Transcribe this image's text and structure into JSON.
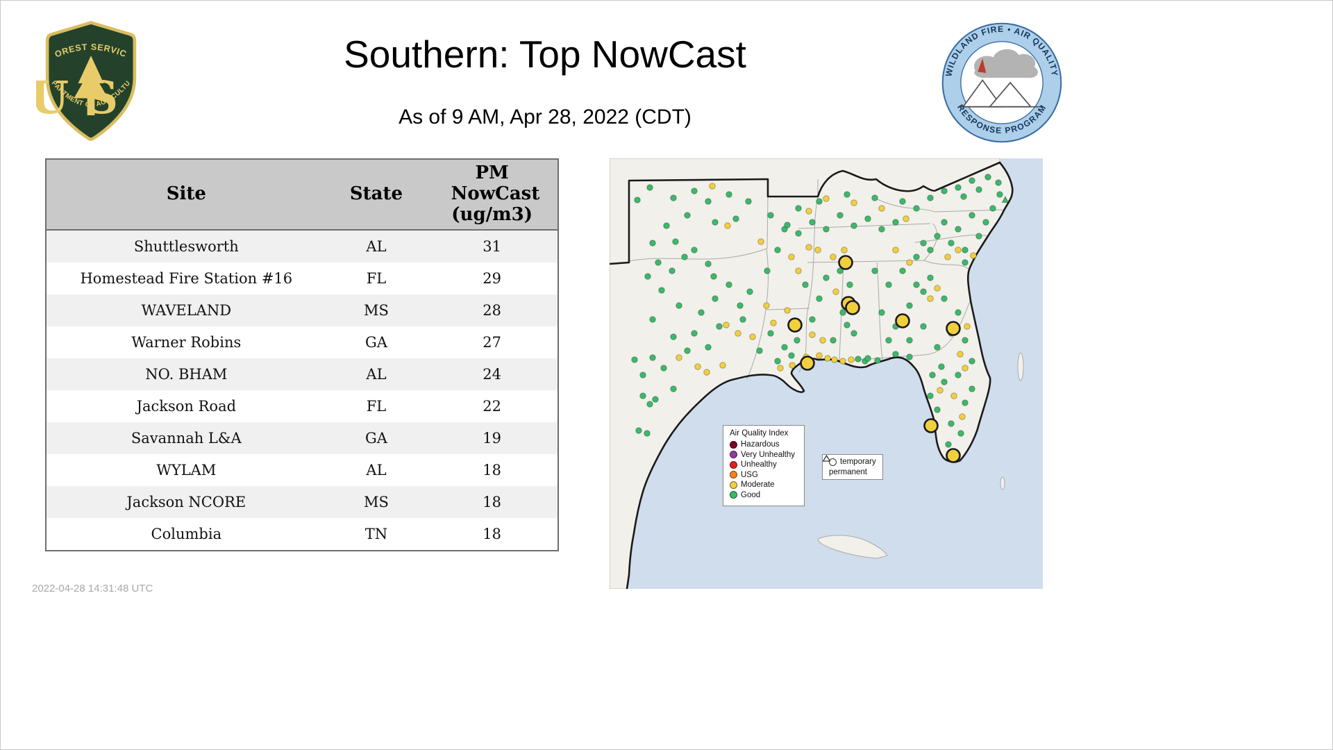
{
  "header": {
    "title": "Southern: Top NowCast",
    "subtitle": "As of  9 AM, Apr 28, 2022 (CDT)",
    "fs_logo": {
      "top": "FOREST SERVICE",
      "center": "US",
      "bottom": "DEPARTMENT OF AGRICULTURE"
    },
    "aqrp_logo": {
      "top": "WILDLAND FIRE • AIR QUALITY",
      "bottom": "RESPONSE PROGRAM"
    }
  },
  "table": {
    "columns": [
      "Site",
      "State",
      "PM NowCast (ug/m3)"
    ],
    "rows": [
      [
        "Shuttlesworth",
        "AL",
        "31"
      ],
      [
        "Homestead Fire Station #16",
        "FL",
        "29"
      ],
      [
        "WAVELAND",
        "MS",
        "28"
      ],
      [
        "Warner Robins",
        "GA",
        "27"
      ],
      [
        "NO. BHAM",
        "AL",
        "24"
      ],
      [
        "Jackson Road",
        "FL",
        "22"
      ],
      [
        "Savannah L&A",
        "GA",
        "19"
      ],
      [
        "WYLAM",
        "AL",
        "18"
      ],
      [
        "Jackson NCORE",
        "MS",
        "18"
      ],
      [
        "Columbia",
        "TN",
        "18"
      ]
    ]
  },
  "footer": {
    "timestamp": "2022-04-28 14:31:48 UTC"
  },
  "map": {
    "legend": {
      "title": "Air Quality Index",
      "items": [
        {
          "label": "Hazardous",
          "color": "#7e0023"
        },
        {
          "label": "Very Unhealthy",
          "color": "#8f3f97"
        },
        {
          "label": "Unhealthy",
          "color": "#e3211c"
        },
        {
          "label": "USG",
          "color": "#f58220"
        },
        {
          "label": "Moderate",
          "color": "#f2cf3e"
        },
        {
          "label": "Good",
          "color": "#3cb96a"
        }
      ]
    },
    "marker_legend": {
      "temporary": "temporary",
      "permanent": "permanent"
    },
    "colors": {
      "water": "#cfdded",
      "land": "#f2f0eb",
      "good": "#3cb96a",
      "moderate": "#f2cf3e"
    },
    "site_markers": [
      [
        340,
        150
      ],
      [
        344,
        209
      ],
      [
        350,
        215
      ],
      [
        267,
        240
      ],
      [
        422,
        234
      ],
      [
        495,
        245
      ],
      [
        285,
        295
      ],
      [
        463,
        385
      ],
      [
        495,
        428
      ]
    ],
    "dots": [
      [
        95,
        120,
        "g"
      ],
      [
        108,
        142,
        "g"
      ],
      [
        90,
        162,
        "g"
      ],
      [
        122,
        132,
        "g"
      ],
      [
        142,
        152,
        "g"
      ],
      [
        75,
        190,
        "g"
      ],
      [
        62,
        232,
        "g"
      ],
      [
        100,
        212,
        "g"
      ],
      [
        132,
        222,
        "g"
      ],
      [
        152,
        202,
        "g"
      ],
      [
        172,
        182,
        "g"
      ],
      [
        188,
        212,
        "g"
      ],
      [
        158,
        242,
        "g"
      ],
      [
        122,
        252,
        "g"
      ],
      [
        92,
        257,
        "g"
      ],
      [
        112,
        277,
        "g"
      ],
      [
        142,
        272,
        "g"
      ],
      [
        62,
        287,
        "g"
      ],
      [
        48,
        312,
        "g"
      ],
      [
        78,
        302,
        "g"
      ],
      [
        192,
        232,
        "g"
      ],
      [
        202,
        192,
        "g"
      ],
      [
        48,
        342,
        "g"
      ],
      [
        66,
        347,
        "g"
      ],
      [
        58,
        354,
        "g"
      ],
      [
        92,
        332,
        "g"
      ],
      [
        42,
        392,
        "g"
      ],
      [
        54,
        396,
        "g"
      ],
      [
        36,
        290,
        "g"
      ],
      [
        150,
        170,
        "g"
      ],
      [
        70,
        150,
        "g"
      ],
      [
        55,
        170,
        "g"
      ],
      [
        168,
        240,
        "y"
      ],
      [
        185,
        252,
        "y"
      ],
      [
        100,
        287,
        "y"
      ],
      [
        127,
        300,
        "y"
      ],
      [
        163,
        298,
        "y"
      ],
      [
        140,
        308,
        "y"
      ],
      [
        58,
        42,
        "g"
      ],
      [
        92,
        57,
        "g"
      ],
      [
        122,
        47,
        "g"
      ],
      [
        142,
        62,
        "g"
      ],
      [
        172,
        52,
        "g"
      ],
      [
        112,
        82,
        "g"
      ],
      [
        82,
        97,
        "g"
      ],
      [
        152,
        92,
        "g"
      ],
      [
        182,
        87,
        "g"
      ],
      [
        62,
        122,
        "g"
      ],
      [
        40,
        60,
        "g"
      ],
      [
        200,
        62,
        "g"
      ],
      [
        170,
        97,
        "y"
      ],
      [
        148,
        40,
        "y"
      ],
      [
        232,
        82,
        "g"
      ],
      [
        252,
        102,
        "g"
      ],
      [
        272,
        72,
        "g"
      ],
      [
        242,
        132,
        "g"
      ],
      [
        227,
        162,
        "g"
      ],
      [
        262,
        142,
        "y"
      ],
      [
        218,
        120,
        "y"
      ],
      [
        232,
        252,
        "g"
      ],
      [
        252,
        272,
        "g"
      ],
      [
        270,
        262,
        "g"
      ],
      [
        242,
        292,
        "g"
      ],
      [
        216,
        277,
        "g"
      ],
      [
        262,
        284,
        "g"
      ],
      [
        226,
        212,
        "y"
      ],
      [
        206,
        257,
        "y"
      ],
      [
        236,
        237,
        "y"
      ],
      [
        256,
        219,
        "y"
      ],
      [
        246,
        302,
        "y"
      ],
      [
        282,
        182,
        "g"
      ],
      [
        302,
        202,
        "g"
      ],
      [
        292,
        232,
        "g"
      ],
      [
        312,
        172,
        "g"
      ],
      [
        272,
        162,
        "y"
      ],
      [
        300,
        132,
        "y"
      ],
      [
        292,
        254,
        "y"
      ],
      [
        307,
        262,
        "y"
      ],
      [
        302,
        284,
        "y"
      ],
      [
        314,
        288,
        "y"
      ],
      [
        324,
        290,
        "y"
      ],
      [
        336,
        292,
        "y"
      ],
      [
        348,
        290,
        "y"
      ],
      [
        283,
        286,
        "y"
      ],
      [
        263,
        298,
        "y"
      ],
      [
        358,
        289,
        "g"
      ],
      [
        368,
        292,
        "g"
      ],
      [
        386,
        291,
        "g"
      ],
      [
        332,
        162,
        "g"
      ],
      [
        346,
        182,
        "g"
      ],
      [
        336,
        222,
        "g"
      ],
      [
        352,
        252,
        "g"
      ],
      [
        322,
        262,
        "g"
      ],
      [
        342,
        240,
        "g"
      ],
      [
        322,
        142,
        "y"
      ],
      [
        338,
        132,
        "y"
      ],
      [
        326,
        192,
        "y"
      ],
      [
        292,
        92,
        "g"
      ],
      [
        312,
        102,
        "g"
      ],
      [
        332,
        82,
        "g"
      ],
      [
        352,
        97,
        "g"
      ],
      [
        372,
        87,
        "g"
      ],
      [
        392,
        102,
        "g"
      ],
      [
        412,
        92,
        "g"
      ],
      [
        302,
        62,
        "g"
      ],
      [
        342,
        52,
        "g"
      ],
      [
        382,
        57,
        "g"
      ],
      [
        422,
        62,
        "g"
      ],
      [
        442,
        72,
        "g"
      ],
      [
        462,
        57,
        "g"
      ],
      [
        482,
        47,
        "g"
      ],
      [
        502,
        42,
        "g"
      ],
      [
        272,
        108,
        "g"
      ],
      [
        256,
        96,
        "g"
      ],
      [
        352,
        64,
        "y"
      ],
      [
        392,
        72,
        "y"
      ],
      [
        427,
        87,
        "y"
      ],
      [
        312,
        58,
        "y"
      ],
      [
        287,
        76,
        "y"
      ],
      [
        287,
        128,
        "y"
      ],
      [
        522,
        32,
        "g"
      ],
      [
        545,
        27,
        "g"
      ],
      [
        532,
        45,
        "g"
      ],
      [
        510,
        55,
        "g"
      ],
      [
        560,
        35,
        "g"
      ],
      [
        570,
        60,
        "gt"
      ],
      [
        562,
        52,
        "g"
      ],
      [
        382,
        162,
        "g"
      ],
      [
        402,
        182,
        "g"
      ],
      [
        422,
        162,
        "g"
      ],
      [
        442,
        182,
        "g"
      ],
      [
        392,
        222,
        "g"
      ],
      [
        412,
        242,
        "g"
      ],
      [
        432,
        212,
        "g"
      ],
      [
        452,
        192,
        "g"
      ],
      [
        462,
        172,
        "g"
      ],
      [
        402,
        262,
        "g"
      ],
      [
        432,
        262,
        "g"
      ],
      [
        452,
        242,
        "g"
      ],
      [
        432,
        150,
        "y"
      ],
      [
        462,
        202,
        "y"
      ],
      [
        472,
        187,
        "y"
      ],
      [
        412,
        132,
        "y"
      ],
      [
        482,
        92,
        "g"
      ],
      [
        502,
        102,
        "g"
      ],
      [
        522,
        82,
        "g"
      ],
      [
        542,
        92,
        "g"
      ],
      [
        492,
        122,
        "g"
      ],
      [
        512,
        132,
        "g"
      ],
      [
        532,
        112,
        "g"
      ],
      [
        472,
        112,
        "g"
      ],
      [
        552,
        72,
        "g"
      ],
      [
        452,
        122,
        "g"
      ],
      [
        442,
        142,
        "g"
      ],
      [
        462,
        132,
        "g"
      ],
      [
        512,
        150,
        "g"
      ],
      [
        502,
        132,
        "y"
      ],
      [
        524,
        140,
        "y"
      ],
      [
        487,
        142,
        "y"
      ],
      [
        482,
        202,
        "g"
      ],
      [
        502,
        222,
        "g"
      ],
      [
        492,
        252,
        "g"
      ],
      [
        472,
        272,
        "g"
      ],
      [
        512,
        262,
        "g"
      ],
      [
        522,
        292,
        "g"
      ],
      [
        502,
        312,
        "g"
      ],
      [
        482,
        322,
        "g"
      ],
      [
        462,
        342,
        "g"
      ],
      [
        472,
        362,
        "g"
      ],
      [
        492,
        382,
        "g"
      ],
      [
        512,
        352,
        "g"
      ],
      [
        506,
        396,
        "g"
      ],
      [
        488,
        412,
        "g"
      ],
      [
        522,
        332,
        "g"
      ],
      [
        478,
        300,
        "g"
      ],
      [
        465,
        312,
        "g"
      ],
      [
        412,
        282,
        "g"
      ],
      [
        432,
        286,
        "g"
      ],
      [
        372,
        288,
        "g"
      ],
      [
        512,
        302,
        "y"
      ],
      [
        496,
        342,
        "y"
      ],
      [
        476,
        334,
        "y"
      ],
      [
        508,
        372,
        "y"
      ],
      [
        515,
        242,
        "y"
      ],
      [
        505,
        282,
        "y"
      ]
    ]
  }
}
